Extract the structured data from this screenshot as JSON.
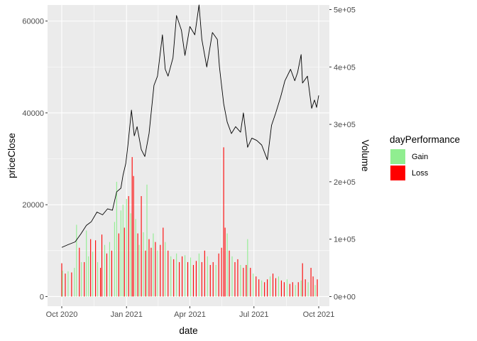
{
  "chart_data": {
    "type": "bar+line",
    "title": "",
    "xlabel": "date",
    "ylabel": "priceClose",
    "y2label": "Volume",
    "x_range": [
      "2020-10-01",
      "2021-10-01"
    ],
    "x_ticks": [
      {
        "date": "2020-10-01",
        "label": "Oct 2020"
      },
      {
        "date": "2021-01-01",
        "label": "Jan 2021"
      },
      {
        "date": "2021-04-01",
        "label": "Apr 2021"
      },
      {
        "date": "2021-07-01",
        "label": "Jul 2021"
      },
      {
        "date": "2021-10-01",
        "label": "Oct 2021"
      }
    ],
    "y_ticks": [
      {
        "value": 0,
        "label": "0"
      },
      {
        "value": 20000,
        "label": "20000"
      },
      {
        "value": 40000,
        "label": "40000"
      },
      {
        "value": 60000,
        "label": "60000"
      }
    ],
    "y2_ticks": [
      {
        "value": 0,
        "label": "0e+00"
      },
      {
        "value": 100000,
        "label": "1e+05"
      },
      {
        "value": 200000,
        "label": "2e+05"
      },
      {
        "value": 300000,
        "label": "3e+05"
      },
      {
        "value": 400000,
        "label": "4e+05"
      },
      {
        "value": 500000,
        "label": "5e+05"
      }
    ],
    "ylim": [
      -2100,
      63500
    ],
    "y2_scale_factor": 8,
    "grid": true,
    "legend": {
      "title": "dayPerformance",
      "placement": "right",
      "entries": [
        {
          "label": "Gain",
          "color": "#90ee90"
        },
        {
          "label": "Loss",
          "color": "#ff0000"
        }
      ]
    },
    "line_color": "#000000",
    "price_series": {
      "name": "priceClose",
      "points": [
        [
          "2020-10-01",
          10700
        ],
        [
          "2020-10-10",
          11300
        ],
        [
          "2020-10-20",
          11900
        ],
        [
          "2020-10-28",
          13600
        ],
        [
          "2020-11-05",
          15500
        ],
        [
          "2020-11-12",
          16300
        ],
        [
          "2020-11-20",
          18400
        ],
        [
          "2020-11-28",
          17800
        ],
        [
          "2020-12-05",
          19100
        ],
        [
          "2020-12-12",
          18800
        ],
        [
          "2020-12-18",
          22800
        ],
        [
          "2020-12-24",
          23600
        ],
        [
          "2020-12-27",
          26400
        ],
        [
          "2020-12-31",
          29000
        ],
        [
          "2021-01-03",
          33000
        ],
        [
          "2021-01-08",
          40600
        ],
        [
          "2021-01-12",
          35000
        ],
        [
          "2021-01-16",
          37000
        ],
        [
          "2021-01-22",
          32000
        ],
        [
          "2021-01-27",
          30500
        ],
        [
          "2021-02-02",
          35500
        ],
        [
          "2021-02-09",
          46000
        ],
        [
          "2021-02-14",
          48000
        ],
        [
          "2021-02-21",
          57000
        ],
        [
          "2021-02-25",
          49500
        ],
        [
          "2021-03-01",
          48000
        ],
        [
          "2021-03-08",
          52000
        ],
        [
          "2021-03-13",
          61200
        ],
        [
          "2021-03-20",
          58000
        ],
        [
          "2021-03-25",
          52500
        ],
        [
          "2021-04-01",
          58800
        ],
        [
          "2021-04-08",
          57000
        ],
        [
          "2021-04-14",
          63500
        ],
        [
          "2021-04-18",
          56000
        ],
        [
          "2021-04-25",
          50000
        ],
        [
          "2021-05-03",
          57500
        ],
        [
          "2021-05-10",
          56000
        ],
        [
          "2021-05-13",
          50000
        ],
        [
          "2021-05-19",
          42000
        ],
        [
          "2021-05-24",
          38000
        ],
        [
          "2021-05-30",
          35500
        ],
        [
          "2021-06-05",
          37000
        ],
        [
          "2021-06-12",
          35800
        ],
        [
          "2021-06-16",
          40000
        ],
        [
          "2021-06-22",
          32500
        ],
        [
          "2021-06-28",
          34500
        ],
        [
          "2021-07-05",
          34000
        ],
        [
          "2021-07-12",
          33000
        ],
        [
          "2021-07-20",
          29800
        ],
        [
          "2021-07-26",
          37300
        ],
        [
          "2021-08-01",
          40000
        ],
        [
          "2021-08-08",
          43500
        ],
        [
          "2021-08-14",
          47000
        ],
        [
          "2021-08-22",
          49500
        ],
        [
          "2021-08-28",
          47000
        ],
        [
          "2021-09-01",
          48800
        ],
        [
          "2021-09-06",
          52700
        ],
        [
          "2021-09-08",
          46500
        ],
        [
          "2021-09-15",
          48000
        ],
        [
          "2021-09-21",
          41000
        ],
        [
          "2021-09-25",
          42800
        ],
        [
          "2021-09-28",
          41200
        ],
        [
          "2021-10-01",
          43800
        ]
      ]
    },
    "volume_series": {
      "name": "Volume",
      "bars": [
        [
          "2020-10-01",
          58000,
          "Loss"
        ],
        [
          "2020-10-02",
          45000,
          "Gain"
        ],
        [
          "2020-10-06",
          40000,
          "Loss"
        ],
        [
          "2020-10-10",
          44000,
          "Gain"
        ],
        [
          "2020-10-15",
          42000,
          "Loss"
        ],
        [
          "2020-10-19",
          50000,
          "Gain"
        ],
        [
          "2020-10-22",
          125000,
          "Gain"
        ],
        [
          "2020-10-26",
          85000,
          "Loss"
        ],
        [
          "2020-10-29",
          60000,
          "Gain"
        ],
        [
          "2020-11-02",
          60000,
          "Loss"
        ],
        [
          "2020-11-05",
          115000,
          "Gain"
        ],
        [
          "2020-11-08",
          70000,
          "Gain"
        ],
        [
          "2020-11-11",
          100000,
          "Loss"
        ],
        [
          "2020-11-14",
          78000,
          "Gain"
        ],
        [
          "2020-11-18",
          98000,
          "Loss"
        ],
        [
          "2020-11-21",
          60000,
          "Gain"
        ],
        [
          "2020-11-25",
          50000,
          "Loss"
        ],
        [
          "2020-11-27",
          108000,
          "Loss"
        ],
        [
          "2020-12-01",
          90000,
          "Gain"
        ],
        [
          "2020-12-04",
          75000,
          "Loss"
        ],
        [
          "2020-12-08",
          95000,
          "Gain"
        ],
        [
          "2020-12-11",
          80000,
          "Loss"
        ],
        [
          "2020-12-15",
          130000,
          "Gain"
        ],
        [
          "2020-12-18",
          200000,
          "Gain"
        ],
        [
          "2020-12-21",
          110000,
          "Loss"
        ],
        [
          "2020-12-24",
          150000,
          "Gain"
        ],
        [
          "2020-12-27",
          160000,
          "Gain"
        ],
        [
          "2020-12-29",
          120000,
          "Loss"
        ],
        [
          "2021-01-01",
          170000,
          "Gain"
        ],
        [
          "2021-01-04",
          175000,
          "Loss"
        ],
        [
          "2021-01-07",
          145000,
          "Gain"
        ],
        [
          "2021-01-09",
          243000,
          "Loss"
        ],
        [
          "2021-01-11",
          210000,
          "Loss"
        ],
        [
          "2021-01-14",
          135000,
          "Gain"
        ],
        [
          "2021-01-17",
          110000,
          "Loss"
        ],
        [
          "2021-01-19",
          90000,
          "Gain"
        ],
        [
          "2021-01-22",
          175000,
          "Loss"
        ],
        [
          "2021-01-25",
          112000,
          "Gain"
        ],
        [
          "2021-01-28",
          80000,
          "Loss"
        ],
        [
          "2021-01-30",
          195000,
          "Gain"
        ],
        [
          "2021-02-02",
          100000,
          "Loss"
        ],
        [
          "2021-02-05",
          85000,
          "Loss"
        ],
        [
          "2021-02-08",
          110000,
          "Gain"
        ],
        [
          "2021-02-11",
          95000,
          "Loss"
        ],
        [
          "2021-02-14",
          80000,
          "Gain"
        ],
        [
          "2021-02-18",
          90000,
          "Loss"
        ],
        [
          "2021-02-22",
          120000,
          "Loss"
        ],
        [
          "2021-02-25",
          95000,
          "Gain"
        ],
        [
          "2021-03-01",
          80000,
          "Loss"
        ],
        [
          "2021-03-05",
          70000,
          "Gain"
        ],
        [
          "2021-03-09",
          65000,
          "Loss"
        ],
        [
          "2021-03-13",
          75000,
          "Gain"
        ],
        [
          "2021-03-17",
          60000,
          "Loss"
        ],
        [
          "2021-03-21",
          70000,
          "Loss"
        ],
        [
          "2021-03-25",
          72000,
          "Gain"
        ],
        [
          "2021-03-29",
          60000,
          "Loss"
        ],
        [
          "2021-04-02",
          68000,
          "Gain"
        ],
        [
          "2021-04-06",
          55000,
          "Loss"
        ],
        [
          "2021-04-10",
          62000,
          "Loss"
        ],
        [
          "2021-04-14",
          75000,
          "Gain"
        ],
        [
          "2021-04-18",
          60000,
          "Loss"
        ],
        [
          "2021-04-22",
          80000,
          "Loss"
        ],
        [
          "2021-04-26",
          70000,
          "Gain"
        ],
        [
          "2021-04-30",
          55000,
          "Loss"
        ],
        [
          "2021-05-04",
          60000,
          "Loss"
        ],
        [
          "2021-05-08",
          55000,
          "Gain"
        ],
        [
          "2021-05-12",
          75000,
          "Loss"
        ],
        [
          "2021-05-16",
          85000,
          "Loss"
        ],
        [
          "2021-05-19",
          260000,
          "Loss"
        ],
        [
          "2021-05-21",
          120000,
          "Loss"
        ],
        [
          "2021-05-24",
          110000,
          "Gain"
        ],
        [
          "2021-05-27",
          80000,
          "Loss"
        ],
        [
          "2021-05-31",
          70000,
          "Gain"
        ],
        [
          "2021-06-04",
          60000,
          "Loss"
        ],
        [
          "2021-06-08",
          65000,
          "Loss"
        ],
        [
          "2021-06-12",
          55000,
          "Gain"
        ],
        [
          "2021-06-16",
          50000,
          "Loss"
        ],
        [
          "2021-06-20",
          55000,
          "Loss"
        ],
        [
          "2021-06-22",
          100000,
          "Gain"
        ],
        [
          "2021-06-26",
          50000,
          "Loss"
        ],
        [
          "2021-06-30",
          40000,
          "Gain"
        ],
        [
          "2021-07-04",
          35000,
          "Loss"
        ],
        [
          "2021-07-08",
          30000,
          "Loss"
        ],
        [
          "2021-07-12",
          28000,
          "Gain"
        ],
        [
          "2021-07-16",
          25000,
          "Loss"
        ],
        [
          "2021-07-20",
          30000,
          "Loss"
        ],
        [
          "2021-07-24",
          35000,
          "Gain"
        ],
        [
          "2021-07-28",
          40000,
          "Loss"
        ],
        [
          "2021-08-01",
          32000,
          "Loss"
        ],
        [
          "2021-08-05",
          35000,
          "Gain"
        ],
        [
          "2021-08-09",
          28000,
          "Loss"
        ],
        [
          "2021-08-13",
          25000,
          "Loss"
        ],
        [
          "2021-08-17",
          30000,
          "Gain"
        ],
        [
          "2021-08-21",
          22000,
          "Loss"
        ],
        [
          "2021-08-25",
          25000,
          "Loss"
        ],
        [
          "2021-08-29",
          20000,
          "Gain"
        ],
        [
          "2021-09-02",
          25000,
          "Loss"
        ],
        [
          "2021-09-06",
          28000,
          "Gain"
        ],
        [
          "2021-09-08",
          58000,
          "Loss"
        ],
        [
          "2021-09-12",
          30000,
          "Loss"
        ],
        [
          "2021-09-16",
          25000,
          "Gain"
        ],
        [
          "2021-09-20",
          50000,
          "Loss"
        ],
        [
          "2021-09-23",
          35000,
          "Loss"
        ],
        [
          "2021-09-26",
          20000,
          "Gain"
        ],
        [
          "2021-09-29",
          30000,
          "Loss"
        ]
      ]
    }
  }
}
